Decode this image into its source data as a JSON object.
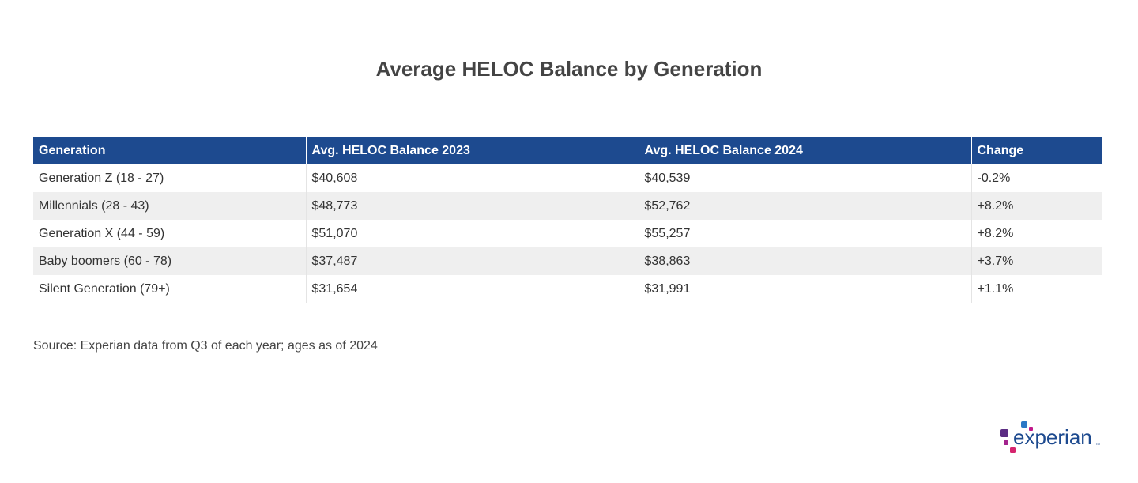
{
  "chart_data": {
    "type": "table",
    "title": "Average HELOC Balance by Generation",
    "columns": [
      "Generation",
      "Avg. HELOC Balance 2023",
      "Avg. HELOC Balance 2024",
      "Change"
    ],
    "rows": [
      [
        "Generation Z (18 - 27)",
        "$40,608",
        "$40,539",
        "-0.2%"
      ],
      [
        "Millennials (28 - 43)",
        "$48,773",
        "$52,762",
        "+8.2%"
      ],
      [
        "Generation X (44 - 59)",
        "$51,070",
        "$55,257",
        "+8.2%"
      ],
      [
        "Baby boomers (60 - 78)",
        "$37,487",
        "$38,863",
        "+3.7%"
      ],
      [
        "Silent Generation (79+)",
        "$31,654",
        "$31,991",
        "+1.1%"
      ]
    ],
    "source": "Source: Experian data from Q3 of each year; ages as of 2024",
    "header_color": "#1d4a8f"
  },
  "logo": {
    "text": "experian"
  }
}
